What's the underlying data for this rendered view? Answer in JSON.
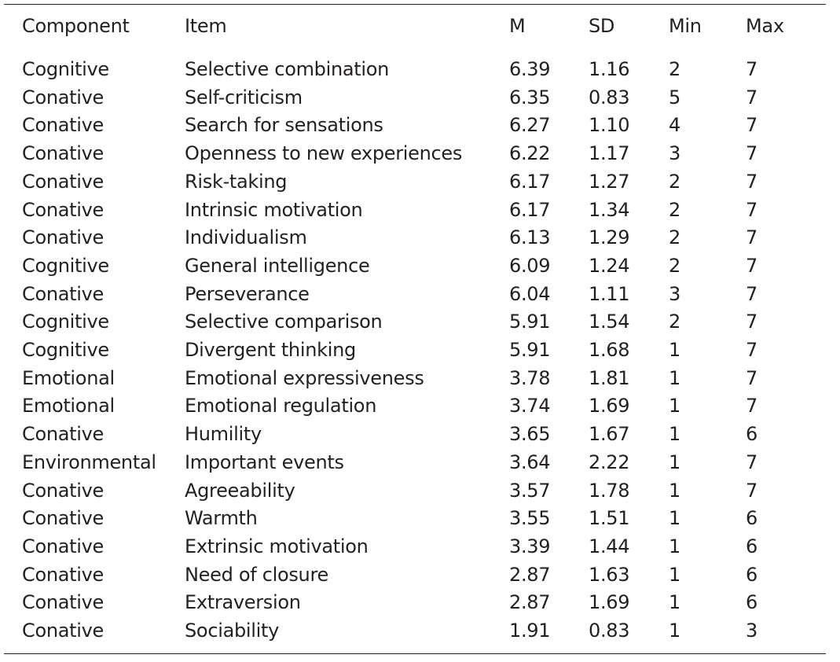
{
  "table": {
    "columns": [
      "Component",
      "Item",
      "M",
      "SD",
      "Min",
      "Max"
    ],
    "rows": [
      [
        "Cognitive",
        "Selective combination",
        "6.39",
        "1.16",
        "2",
        "7"
      ],
      [
        "Conative",
        "Self-criticism",
        "6.35",
        "0.83",
        "5",
        "7"
      ],
      [
        "Conative",
        "Search for sensations",
        "6.27",
        "1.10",
        "4",
        "7"
      ],
      [
        "Conative",
        "Openness to new experiences",
        "6.22",
        "1.17",
        "3",
        "7"
      ],
      [
        "Conative",
        "Risk-taking",
        "6.17",
        "1.27",
        "2",
        "7"
      ],
      [
        "Conative",
        "Intrinsic motivation",
        "6.17",
        "1.34",
        "2",
        "7"
      ],
      [
        "Conative",
        "Individualism",
        "6.13",
        "1.29",
        "2",
        "7"
      ],
      [
        "Cognitive",
        "General intelligence",
        "6.09",
        "1.24",
        "2",
        "7"
      ],
      [
        "Conative",
        "Perseverance",
        "6.04",
        "1.11",
        "3",
        "7"
      ],
      [
        "Cognitive",
        "Selective comparison",
        "5.91",
        "1.54",
        "2",
        "7"
      ],
      [
        "Cognitive",
        "Divergent thinking",
        "5.91",
        "1.68",
        "1",
        "7"
      ],
      [
        "Emotional",
        "Emotional expressiveness",
        "3.78",
        "1.81",
        "1",
        "7"
      ],
      [
        "Emotional",
        "Emotional regulation",
        "3.74",
        "1.69",
        "1",
        "7"
      ],
      [
        "Conative",
        "Humility",
        "3.65",
        "1.67",
        "1",
        "6"
      ],
      [
        "Environmental",
        "Important events",
        "3.64",
        "2.22",
        "1",
        "7"
      ],
      [
        "Conative",
        "Agreeability",
        "3.57",
        "1.78",
        "1",
        "7"
      ],
      [
        "Conative",
        "Warmth",
        "3.55",
        "1.51",
        "1",
        "6"
      ],
      [
        "Conative",
        "Extrinsic motivation",
        "3.39",
        "1.44",
        "1",
        "6"
      ],
      [
        "Conative",
        "Need of closure",
        "2.87",
        "1.63",
        "1",
        "6"
      ],
      [
        "Conative",
        "Extraversion",
        "2.87",
        "1.69",
        "1",
        "6"
      ],
      [
        "Conative",
        "Sociability",
        "1.91",
        "0.83",
        "1",
        "3"
      ]
    ]
  }
}
